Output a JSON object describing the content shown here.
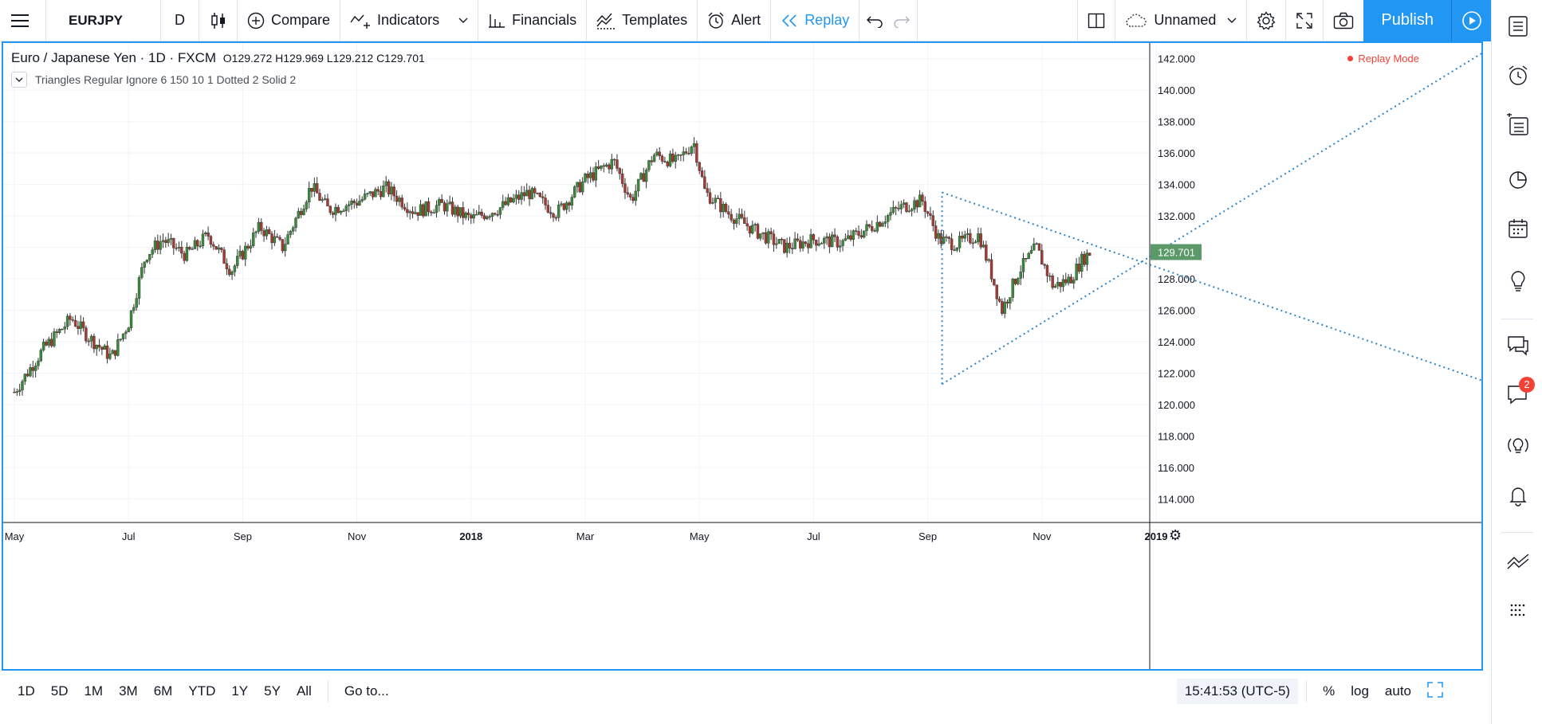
{
  "toolbar": {
    "symbol": "EURJPY",
    "interval": "D",
    "compare": "Compare",
    "indicators": "Indicators",
    "financials": "Financials",
    "templates": "Templates",
    "alert": "Alert",
    "replay": "Replay",
    "layout_name": "Unnamed",
    "publish": "Publish"
  },
  "legend": {
    "title": "Euro / Japanese Yen · 1D · FXCM",
    "open": "O129.272",
    "high": "H129.969",
    "low": "L129.212",
    "close": "C129.701",
    "indicator": "Triangles Regular Ignore 6 150 10 1 Dotted 2 Solid 2",
    "replay_mode": "Replay Mode"
  },
  "bottom": {
    "ranges": [
      "1D",
      "5D",
      "1M",
      "3M",
      "6M",
      "YTD",
      "1Y",
      "5Y",
      "All"
    ],
    "goto": "Go to...",
    "time": "15:41:53 (UTC-5)",
    "percent": "%",
    "log": "log",
    "auto": "auto"
  },
  "sidebar": {
    "chat_badge": "2"
  },
  "chart_data": {
    "type": "candlestick",
    "symbol": "EURJPY",
    "last_price_label": "129.701",
    "ylim": [
      112.5,
      143.0
    ],
    "y_ticks": [
      "142.000",
      "140.000",
      "138.000",
      "136.000",
      "134.000",
      "132.000",
      "130.000",
      "128.000",
      "126.000",
      "124.000",
      "122.000",
      "120.000",
      "118.000",
      "116.000",
      "114.000"
    ],
    "x_ticks": [
      "May",
      "Jul",
      "Sep",
      "Nov",
      "2018",
      "Mar",
      "May",
      "Jul",
      "Sep",
      "Nov",
      "2019"
    ],
    "price_path": [
      {
        "month": 0.0,
        "price": 120.8
      },
      {
        "month": 0.5,
        "price": 123.5
      },
      {
        "month": 1.0,
        "price": 125.5
      },
      {
        "month": 1.3,
        "price": 124.3
      },
      {
        "month": 1.7,
        "price": 123.0
      },
      {
        "month": 2.0,
        "price": 125.2
      },
      {
        "month": 2.3,
        "price": 129.5
      },
      {
        "month": 2.6,
        "price": 130.5
      },
      {
        "month": 3.0,
        "price": 129.5
      },
      {
        "month": 3.4,
        "price": 130.8
      },
      {
        "month": 3.8,
        "price": 128.5
      },
      {
        "month": 4.3,
        "price": 131.3
      },
      {
        "month": 4.7,
        "price": 130.0
      },
      {
        "month": 5.2,
        "price": 133.9
      },
      {
        "month": 5.5,
        "price": 132.4
      },
      {
        "month": 6.0,
        "price": 132.9
      },
      {
        "month": 6.5,
        "price": 133.8
      },
      {
        "month": 7.0,
        "price": 132.3
      },
      {
        "month": 7.5,
        "price": 132.7
      },
      {
        "month": 8.0,
        "price": 131.8
      },
      {
        "month": 8.5,
        "price": 132.5
      },
      {
        "month": 9.0,
        "price": 133.5
      },
      {
        "month": 9.5,
        "price": 132.2
      },
      {
        "month": 10.0,
        "price": 134.3
      },
      {
        "month": 10.5,
        "price": 135.5
      },
      {
        "month": 10.8,
        "price": 133.0
      },
      {
        "month": 11.2,
        "price": 135.9
      },
      {
        "month": 11.6,
        "price": 135.4
      },
      {
        "month": 11.9,
        "price": 136.7
      },
      {
        "month": 12.1,
        "price": 133.5
      },
      {
        "month": 12.5,
        "price": 132.2
      },
      {
        "month": 13.0,
        "price": 131.0
      },
      {
        "month": 13.5,
        "price": 130.0
      },
      {
        "month": 14.0,
        "price": 130.5
      },
      {
        "month": 14.5,
        "price": 130.3
      },
      {
        "month": 15.0,
        "price": 131.3
      },
      {
        "month": 15.5,
        "price": 132.5
      },
      {
        "month": 15.9,
        "price": 133.0
      },
      {
        "month": 16.2,
        "price": 130.5
      },
      {
        "month": 16.5,
        "price": 130.2
      },
      {
        "month": 16.9,
        "price": 130.8
      },
      {
        "month": 17.1,
        "price": 128.5
      },
      {
        "month": 17.3,
        "price": 126.0
      },
      {
        "month": 17.6,
        "price": 128.5
      },
      {
        "month": 17.9,
        "price": 130.0
      },
      {
        "month": 18.2,
        "price": 127.5
      },
      {
        "month": 18.5,
        "price": 128.0
      },
      {
        "month": 18.7,
        "price": 129.2
      },
      {
        "month": 18.85,
        "price": 129.7
      }
    ],
    "triangle": {
      "upper_line": [
        {
          "month": 16.25,
          "price": 133.5
        },
        {
          "month": 18.85,
          "price": 129.3
        }
      ],
      "lower_line": [
        {
          "month": 16.25,
          "price": 121.3
        },
        {
          "month": 18.85,
          "price": 129.0
        }
      ],
      "left_edge": [
        {
          "month": 16.25,
          "price": 121.3
        },
        {
          "month": 16.25,
          "price": 133.5
        }
      ],
      "extension_up_end": {
        "month": 26.0,
        "price": 143.0
      },
      "extension_down_end": {
        "month": 28.5,
        "price": 118.0
      }
    }
  }
}
